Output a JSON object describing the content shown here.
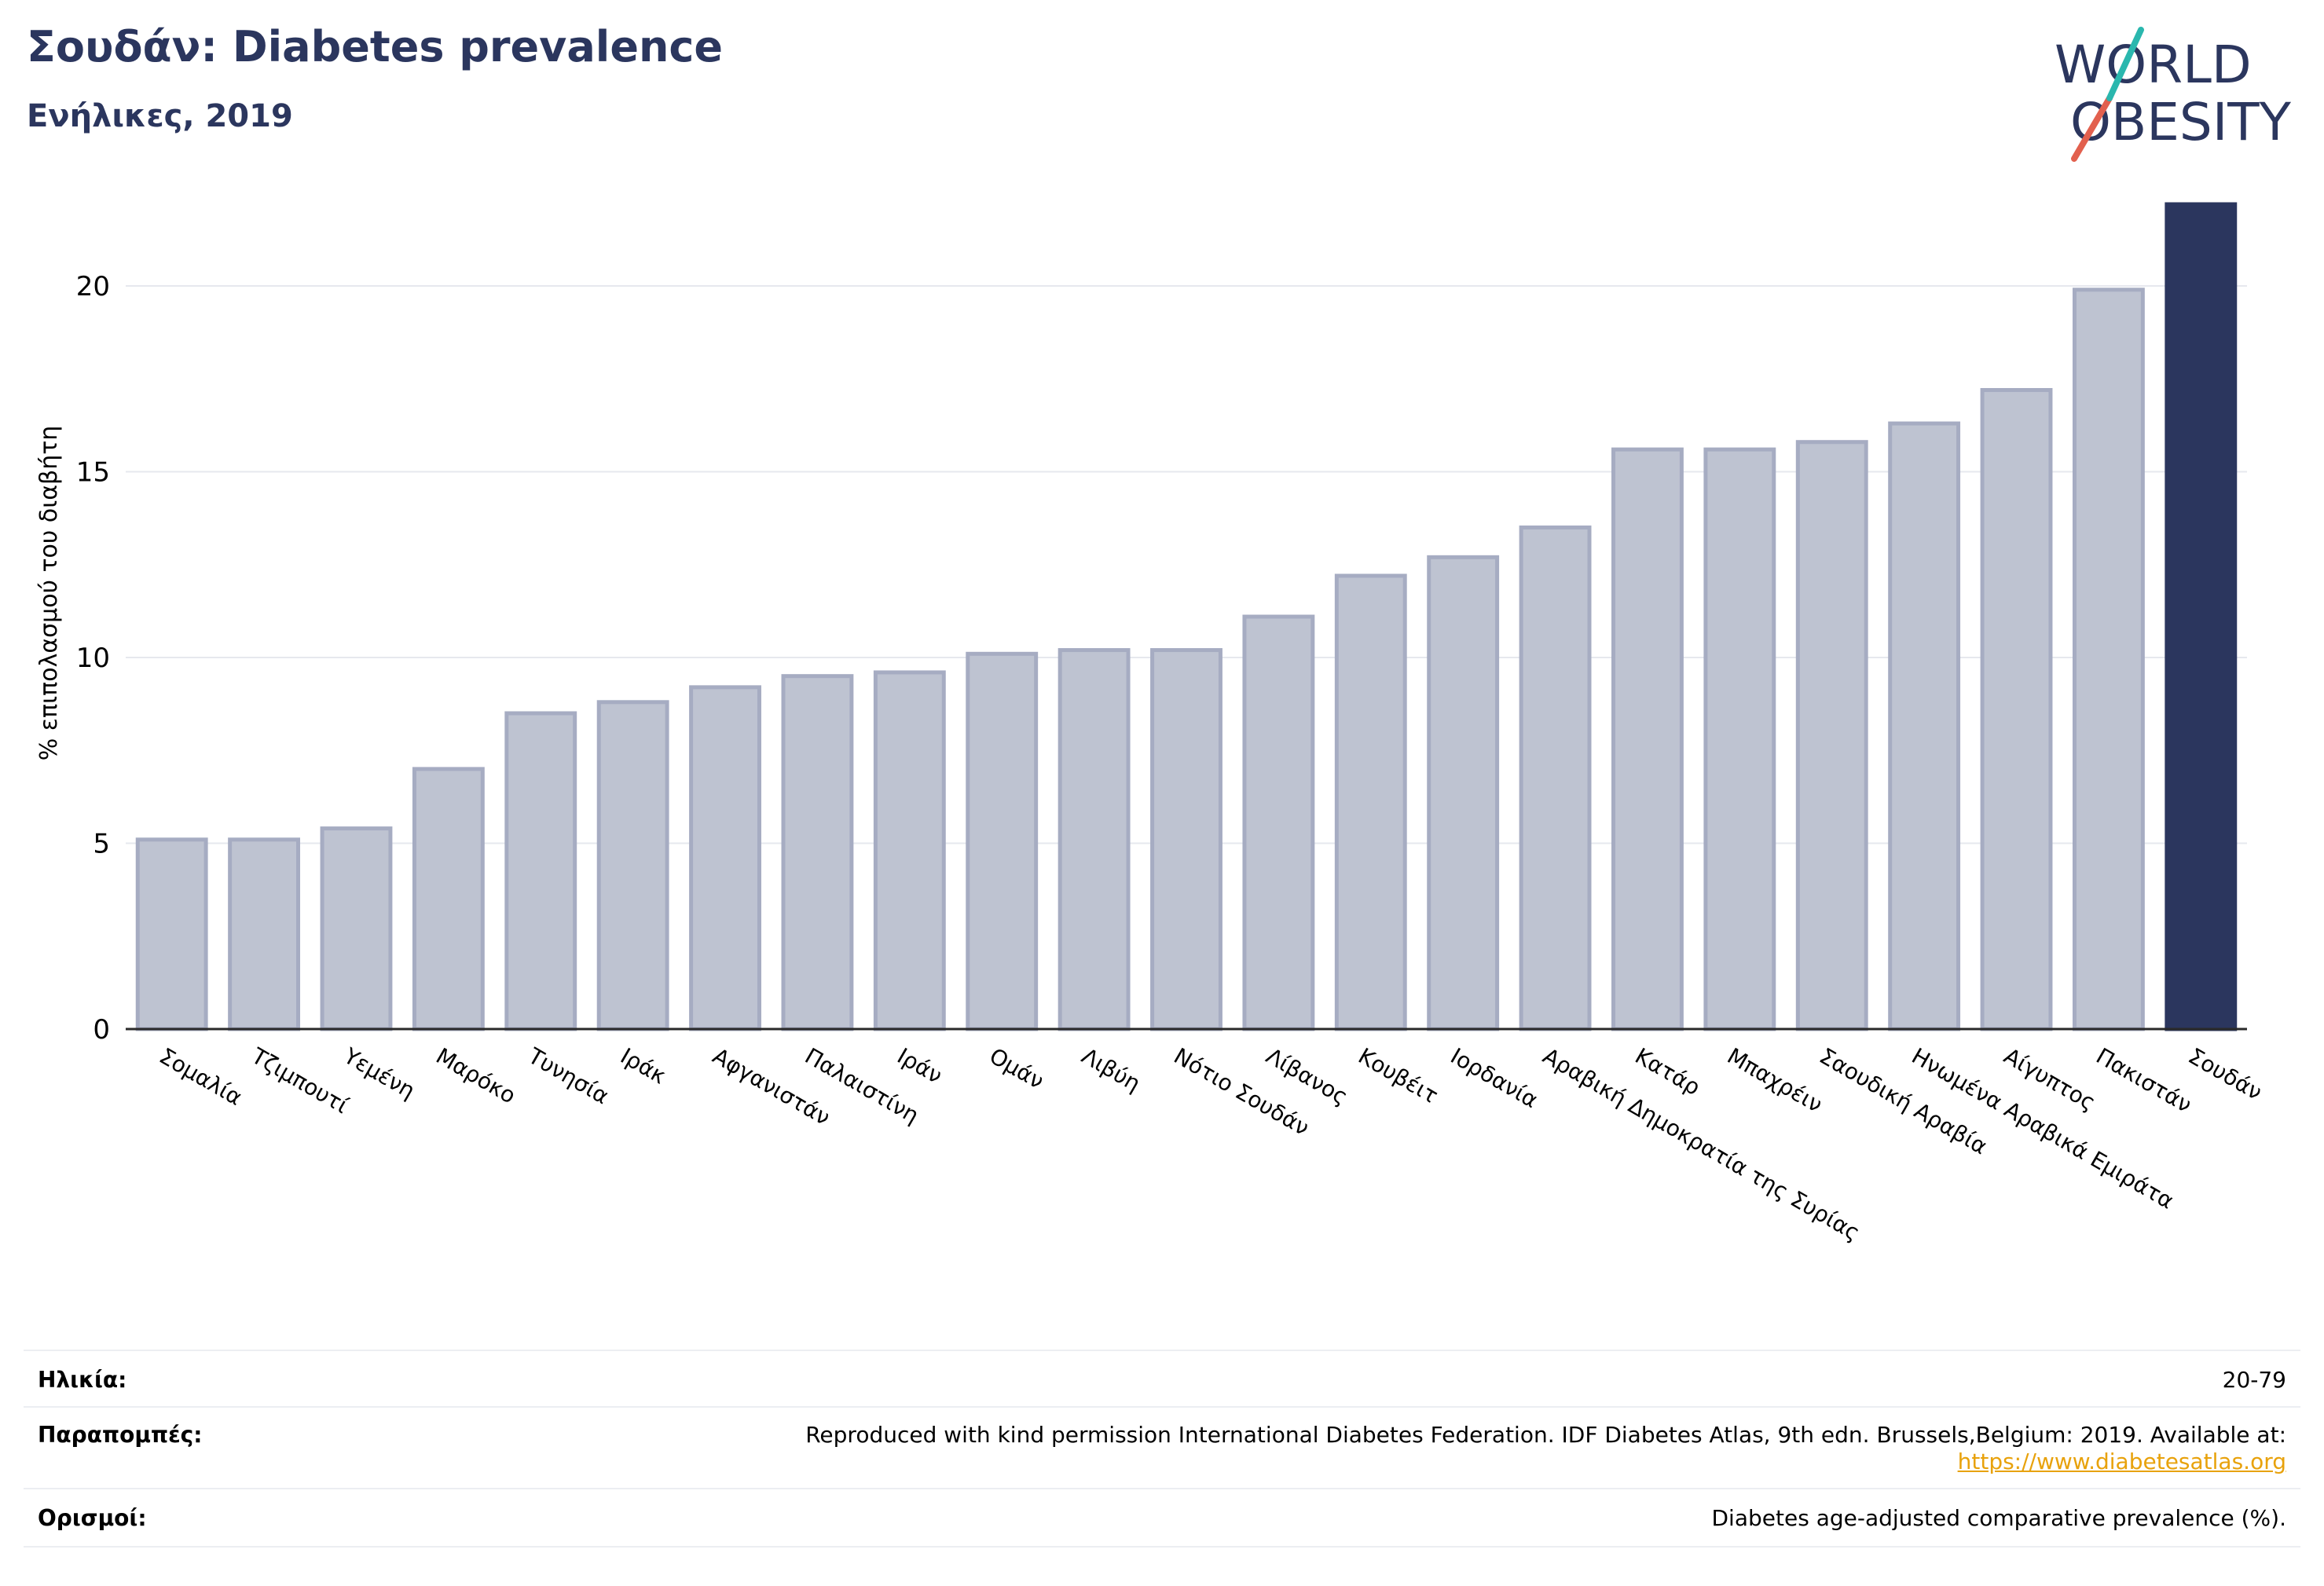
{
  "header": {
    "title": "Σουδάν: Diabetes prevalence",
    "subtitle": "Ενήλικες, 2019"
  },
  "logo": {
    "line1": "WORLD",
    "line2": "OBESITY"
  },
  "chart_data": {
    "type": "bar",
    "ylabel": "% επιπολασμού του διαβήτη",
    "xlabel": "",
    "ylim": [
      0,
      22.2
    ],
    "yticks": [
      0,
      5,
      10,
      15,
      20
    ],
    "grid": true,
    "categories": [
      "Σομαλία",
      "Τζιμπουτί",
      "Υεμένη",
      "Μαρόκο",
      "Τυνησία",
      "Ιράκ",
      "Αφγανιστάν",
      "Παλαιστίνη",
      "Ιράν",
      "Ομάν",
      "Λιβύη",
      "Νότιο Σουδάν",
      "Λίβανος",
      "Κουβέιτ",
      "Ιορδανία",
      "Αραβική Δημοκρατία της Συρίας",
      "Κατάρ",
      "Μπαχρέιν",
      "Σαουδική Αραβία",
      "Ηνωμένα Αραβικά Εμιράτα",
      "Αίγυπτος",
      "Πακιστάν",
      "Σουδάν"
    ],
    "values": [
      5.1,
      5.1,
      5.4,
      7.0,
      8.5,
      8.8,
      9.2,
      9.5,
      9.6,
      10.1,
      10.2,
      10.2,
      11.1,
      12.2,
      12.7,
      13.5,
      15.6,
      15.6,
      15.8,
      16.3,
      17.2,
      19.9,
      22.2
    ],
    "highlight": "Σουδάν",
    "colors": {
      "bar": "#bec3d1",
      "bar_border": "#a6acc2",
      "highlight": "#2b365e",
      "grid": "#e6e8ee",
      "axis": "#2a2a2a"
    }
  },
  "footer": {
    "age_label": "Ηλικία:",
    "age_value": "20-79",
    "refs_label": "Παραπομπές:",
    "refs_text": "Reproduced with kind permission International Diabetes Federation. IDF Diabetes Atlas, 9th edn. Brussels,Belgium: 2019. Available at:",
    "refs_link": "https://www.diabetesatlas.org",
    "defs_label": "Ορισμοί:",
    "defs_value": "Diabetes age-adjusted comparative prevalence (%)."
  }
}
